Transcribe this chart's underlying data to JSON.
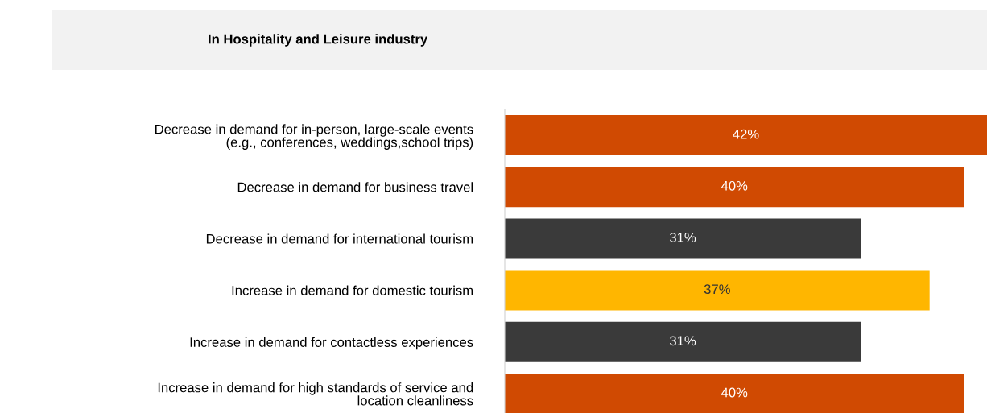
{
  "chart_data": {
    "type": "bar",
    "orientation": "horizontal",
    "title": "In Hospitality and Leisure industry",
    "categories": [
      "Decrease in demand for in-person, large-scale events\n(e.g., conferences, weddings,school trips)",
      "Decrease in demand for business travel",
      "Decrease in demand for international tourism",
      "Increase in demand for domestic tourism",
      "Increase in demand for contactless experiences",
      "Increase in demand for high standards of service and\nlocation cleanliness"
    ],
    "values": [
      42,
      40,
      31,
      37,
      31,
      40
    ],
    "colors": [
      "#d04a02",
      "#d04a02",
      "#3a3a3a",
      "#ffb600",
      "#3a3a3a",
      "#d04a02"
    ],
    "value_labels": [
      "42%",
      "40%",
      "31%",
      "37%",
      "31%",
      "40%"
    ],
    "grid": false,
    "legend": false
  }
}
